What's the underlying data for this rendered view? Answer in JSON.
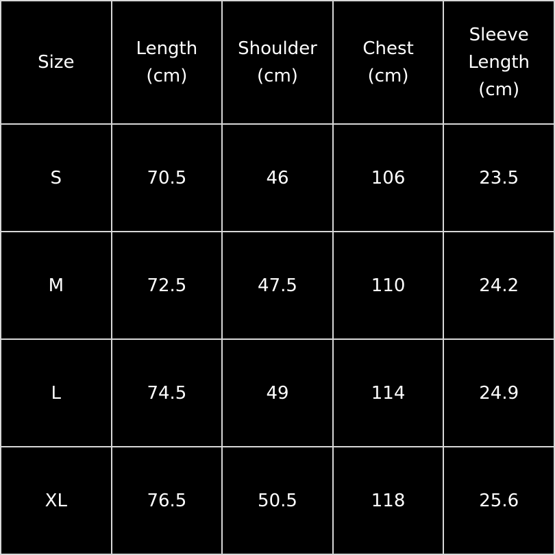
{
  "table": {
    "headers": [
      "Size",
      "Length\n(cm)",
      "Shoulder\n(cm)",
      "Chest\n(cm)",
      "Sleeve\nLength\n(cm)"
    ],
    "rows": [
      [
        "S",
        "70.5",
        "46",
        "106",
        "23.5"
      ],
      [
        "M",
        "72.5",
        "47.5",
        "110",
        "24.2"
      ],
      [
        "L",
        "74.5",
        "49",
        "114",
        "24.9"
      ],
      [
        "XL",
        "76.5",
        "50.5",
        "118",
        "25.6"
      ]
    ]
  },
  "colors": {
    "background": "#000000",
    "text": "#ffffff",
    "grid": "#d8d8d8"
  }
}
